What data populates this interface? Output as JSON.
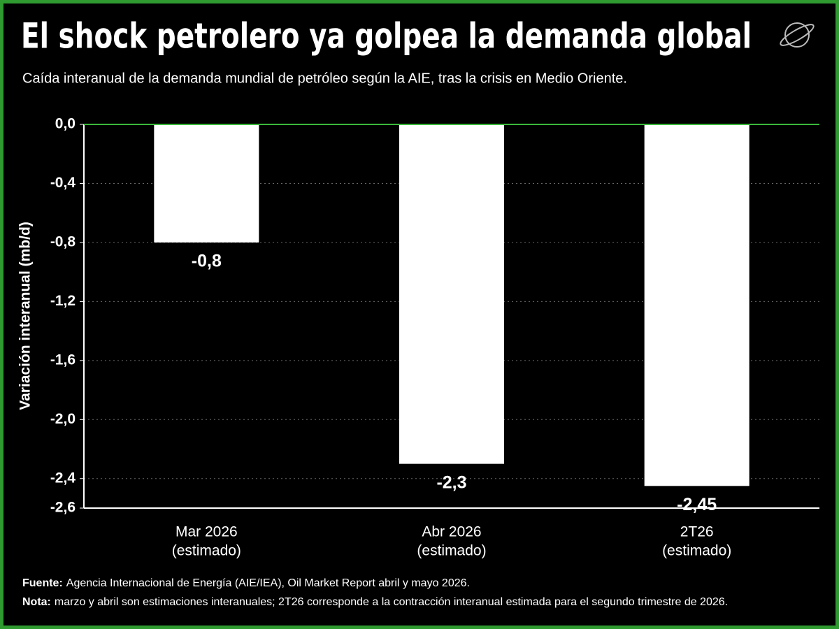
{
  "chart_data": {
    "type": "bar",
    "title": "El shock petrolero ya golpea la demanda global",
    "subtitle": "Caída interanual de la demanda mundial de petróleo según la AIE, tras la crisis en Medio Oriente.",
    "y_label": "Variación interanual (mb/d)",
    "categories": [
      [
        "Mar 2026",
        "(estimado)"
      ],
      [
        "Abr 2026",
        "(estimado)"
      ],
      [
        "2T26",
        "(estimado)"
      ]
    ],
    "values": [
      -0.8,
      -2.3,
      -2.45
    ],
    "value_labels": [
      "-0,8",
      "-2,3",
      "-2,45"
    ],
    "color": "#ffffff",
    "ylim": [
      -2.6,
      0
    ],
    "yticks": [
      {
        "value": 0,
        "label": "0,0"
      },
      {
        "value": -0.4,
        "label": "-0,4"
      },
      {
        "value": -0.8,
        "label": "-0,8"
      },
      {
        "value": -1.2,
        "label": "-1,2"
      },
      {
        "value": -1.6,
        "label": "-1,6"
      },
      {
        "value": -2.0,
        "label": "-2,0"
      },
      {
        "value": -2.4,
        "label": "-2,4"
      },
      {
        "value": -2.6,
        "label": "-2,6"
      }
    ],
    "grid": true,
    "notes": [
      {
        "label": "Fuente:",
        "text": "Agencia Internacional de Energía (AIE/IEA), Oil Market Report abril y mayo 2026."
      },
      {
        "label": "Nota:",
        "text": "marzo y abril son estimaciones interanuales; 2T26 corresponde a la contracción interanual estimada para el segundo trimestre de 2026."
      }
    ]
  }
}
